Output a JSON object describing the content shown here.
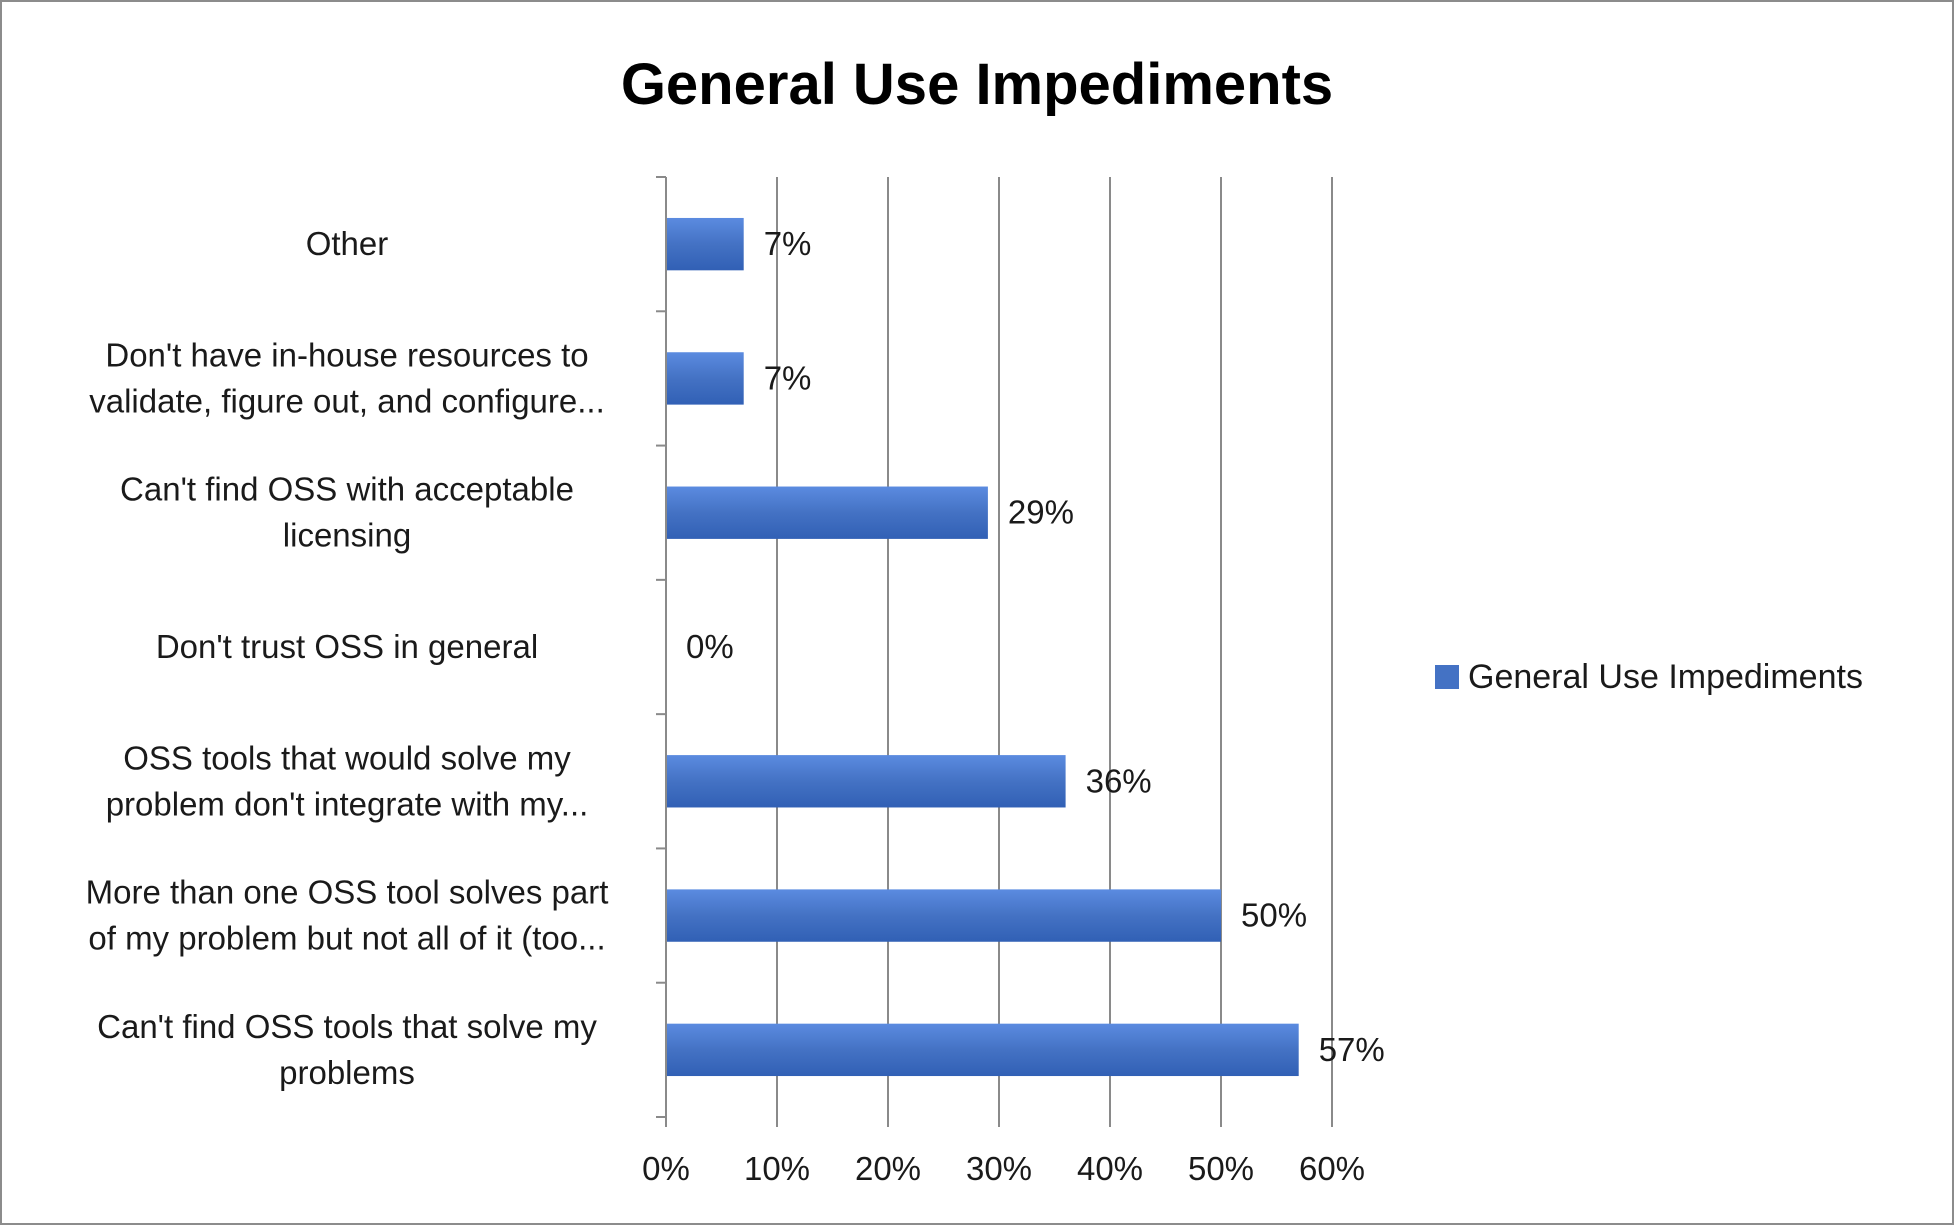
{
  "chart_data": {
    "type": "bar",
    "orientation": "horizontal",
    "title": "General Use Impediments",
    "categories": [
      [
        "Other"
      ],
      [
        "Don't have in-house resources to",
        "validate, figure out, and configure..."
      ],
      [
        "Can't find OSS with acceptable",
        "licensing"
      ],
      [
        "Don't trust OSS in general"
      ],
      [
        "OSS tools that would solve my",
        "problem don't integrate with my..."
      ],
      [
        "More than one OSS tool solves part",
        "of my problem but not all of it (too..."
      ],
      [
        "Can't find OSS tools that solve my",
        "problems"
      ]
    ],
    "series": [
      {
        "name": "General Use Impediments",
        "values": [
          7,
          7,
          29,
          0,
          36,
          50,
          57
        ],
        "labels": [
          "7%",
          "7%",
          "29%",
          "0%",
          "36%",
          "50%",
          "57%"
        ],
        "color": "#4472c4"
      }
    ],
    "xticks": [
      "0%",
      "10%",
      "20%",
      "30%",
      "40%",
      "50%",
      "60%"
    ],
    "xlim": [
      0,
      60
    ],
    "grid": "vertical",
    "legend": "right"
  }
}
